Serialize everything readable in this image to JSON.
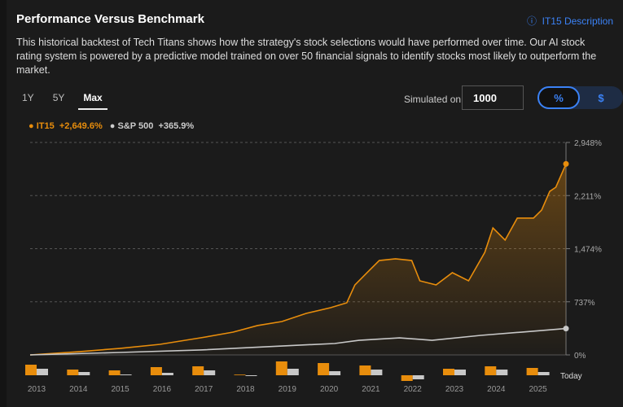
{
  "header": {
    "title": "Performance Versus Benchmark",
    "description_link": "IT15 Description",
    "description": "This historical backtest of Tech Titans shows how the strategy's stock selections would have performed over time. Our AI stock rating system is powered by a predictive model trained on over 50 financial signals to identify stocks most likely to outperform the market."
  },
  "tabs": [
    {
      "label": "1Y"
    },
    {
      "label": "5Y"
    },
    {
      "label": "Max",
      "active": true
    }
  ],
  "simulation": {
    "label": "Simulated on",
    "value": "1000"
  },
  "toggle": {
    "percent": "%",
    "dollar": "$",
    "selected": "%"
  },
  "legend": [
    {
      "name": "IT15",
      "value": "+2,649.6%",
      "color": "#e88d0c"
    },
    {
      "name": "S&P 500",
      "value": "+365.9%",
      "color": "#c8c8c8"
    }
  ],
  "colors": {
    "it15": "#e88d0c",
    "sp500": "#c8c8c8",
    "accent": "#3b82f6"
  },
  "chart_data": {
    "type": "line",
    "title": "Performance Versus Benchmark",
    "ylim": [
      0,
      2948
    ],
    "yticks": [
      "2,948%",
      "2,211%",
      "1,474%",
      "737%",
      "0%"
    ],
    "ytick_values": [
      2948,
      2211,
      1474,
      737,
      0
    ],
    "xlim": [
      2012.7,
      2025.9
    ],
    "series": [
      {
        "name": "IT15",
        "x": [
          2012.7,
          2013.9,
          2014.9,
          2015.9,
          2016.9,
          2017.7,
          2018.3,
          2018.9,
          2019.5,
          2020.1,
          2020.5,
          2020.7,
          2021.0,
          2021.3,
          2021.7,
          2022.1,
          2022.3,
          2022.7,
          2023.1,
          2023.5,
          2023.9,
          2024.1,
          2024.4,
          2024.7,
          2025.1,
          2025.3,
          2025.5,
          2025.65,
          2025.9
        ],
        "y": [
          0,
          45,
          90,
          147,
          237,
          316,
          407,
          463,
          576,
          655,
          723,
          971,
          1141,
          1310,
          1333,
          1310,
          1028,
          971,
          1141,
          1028,
          1423,
          1762,
          1593,
          1898,
          1898,
          2010,
          2270,
          2327,
          2650
        ]
      },
      {
        "name": "S&P 500",
        "x": [
          2012.7,
          2014.9,
          2016.9,
          2018.9,
          2020.2,
          2020.8,
          2021.8,
          2022.6,
          2023.8,
          2024.8,
          2025.9
        ],
        "y": [
          0,
          34,
          68,
          124,
          158,
          203,
          237,
          203,
          271,
          316,
          366
        ]
      }
    ],
    "annual_returns": {
      "categories": [
        "2013",
        "2014",
        "2015",
        "2016",
        "2017",
        "2018",
        "2019",
        "2020",
        "2021",
        "2022",
        "2023",
        "2024",
        "2025"
      ],
      "it15": [
        65,
        35,
        30,
        50,
        55,
        3,
        85,
        75,
        60,
        -35,
        40,
        55,
        45
      ],
      "sp500": [
        40,
        20,
        5,
        15,
        30,
        -5,
        40,
        25,
        35,
        -25,
        35,
        35,
        20
      ]
    },
    "today_label": "Today"
  }
}
